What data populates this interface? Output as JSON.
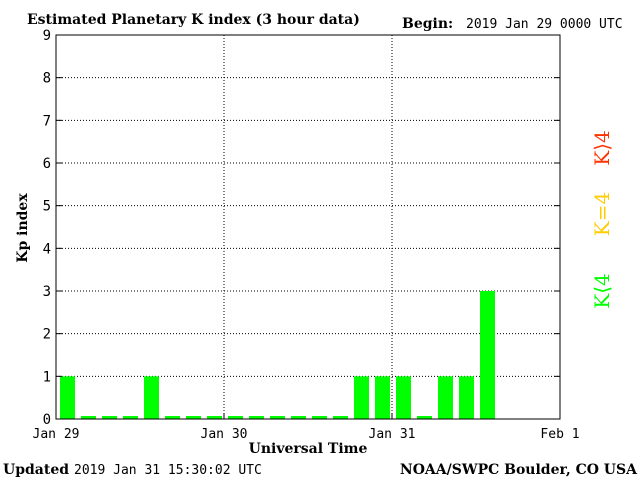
{
  "header": {
    "title": "Estimated Planetary K index (3 hour data)",
    "begin_label": "Begin:",
    "begin_value": "2019 Jan 29 0000 UTC"
  },
  "footer": {
    "updated_label": "Updated",
    "updated_value": "2019 Jan 31 15:30:02 UTC",
    "source": "NOAA/SWPC Boulder, CO USA"
  },
  "legend": {
    "high": "K⟩4",
    "equal": "K=4",
    "low": "K⟨4"
  },
  "colors": {
    "bar": "#00ff00",
    "low": "#00ff00",
    "equal": "#ffcc00",
    "high": "#ff3300",
    "axis": "#000000",
    "grid": "#000000"
  },
  "chart_data": {
    "type": "bar",
    "xlabel": "Universal Time",
    "ylabel": "Kp index",
    "ylim": [
      0,
      9
    ],
    "yticks": [
      0,
      1,
      2,
      3,
      4,
      5,
      6,
      7,
      8,
      9
    ],
    "xlim": [
      "2019-01-29T00:00",
      "2019-02-01T00:00"
    ],
    "xtick_labels": [
      "Jan 29",
      "Jan 30",
      "Jan 31",
      "Feb 1"
    ],
    "grid": true,
    "interval_hours": 3,
    "values": [
      1,
      0,
      0,
      0,
      1,
      0,
      0,
      0,
      0,
      0,
      0,
      0,
      0,
      0,
      1,
      1,
      1,
      0,
      1,
      1,
      3
    ]
  }
}
